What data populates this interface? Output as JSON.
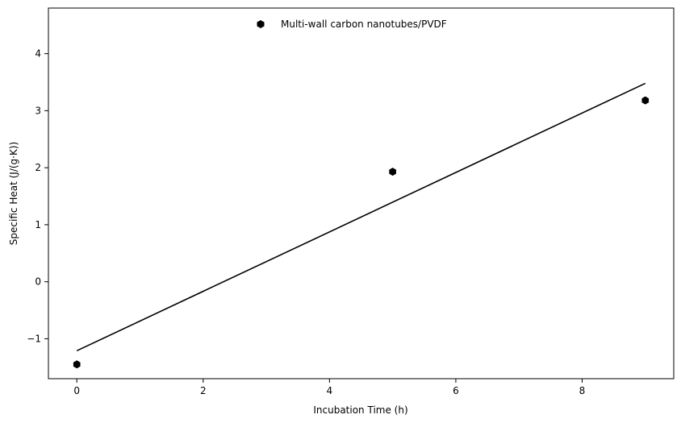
{
  "chart_data": {
    "type": "scatter",
    "xlabel": "Incubation Time (h)",
    "ylabel": "Specific Heat (J/(g·K))",
    "xlim": [
      -0.45,
      9.45
    ],
    "ylim": [
      -1.7,
      4.8
    ],
    "x_ticks": [
      0,
      2,
      4,
      6,
      8
    ],
    "x_tick_labels": [
      "0",
      "2",
      "4",
      "6",
      "8"
    ],
    "y_ticks": [
      -1,
      0,
      1,
      2,
      3,
      4
    ],
    "y_tick_labels": [
      "−1",
      "0",
      "1",
      "2",
      "3",
      "4"
    ],
    "grid": false,
    "legend_position": "upper center",
    "series": [
      {
        "name": "Multi-wall carbon nanotubes/PVDF",
        "kind": "scatter",
        "marker": "hexagon",
        "color": "#000000",
        "points": [
          {
            "x": 0,
            "y": -1.45
          },
          {
            "x": 5,
            "y": 1.93
          },
          {
            "x": 9,
            "y": 3.18
          }
        ]
      },
      {
        "kind": "line",
        "color": "#000000",
        "points": [
          {
            "x": 0,
            "y": -1.21
          },
          {
            "x": 9,
            "y": 3.48
          }
        ]
      }
    ]
  }
}
